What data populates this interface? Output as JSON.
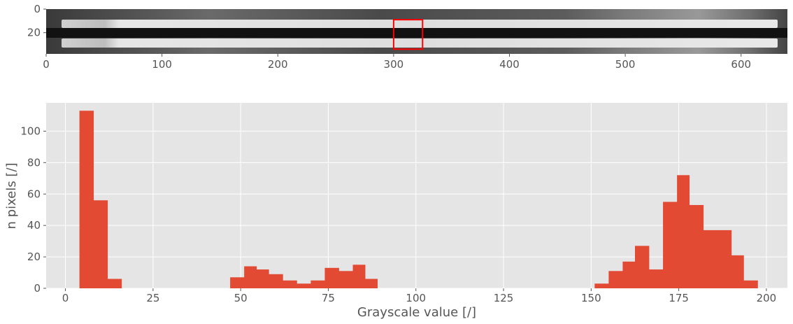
{
  "chart_data": [
    {
      "type": "image",
      "xlim": [
        0,
        640
      ],
      "ylim": [
        0,
        38
      ],
      "xticks": [
        "0",
        "100",
        "200",
        "300",
        "400",
        "500",
        "600"
      ],
      "yticks": [
        "0",
        "20"
      ],
      "roi": {
        "x": [
          300,
          325
        ],
        "y": [
          9,
          34
        ],
        "color": "#ff0000"
      }
    },
    {
      "type": "bar",
      "xlabel": "Grayscale value [/]",
      "ylabel": "n pixels [/]",
      "xlim": [
        -5.5,
        206
      ],
      "ylim": [
        0,
        118
      ],
      "grid": true,
      "color": "#E24A33",
      "xticks": [
        "0",
        "25",
        "50",
        "75",
        "100",
        "125",
        "150",
        "175",
        "200"
      ],
      "yticks": [
        "0",
        "20",
        "40",
        "60",
        "80",
        "100"
      ],
      "bins": [
        {
          "x0": 4,
          "x1": 8,
          "value": 113
        },
        {
          "x0": 8,
          "x1": 12,
          "value": 56
        },
        {
          "x0": 12,
          "x1": 16,
          "value": 6
        },
        {
          "x0": 47,
          "x1": 51,
          "value": 7
        },
        {
          "x0": 51,
          "x1": 54.5,
          "value": 14
        },
        {
          "x0": 54.5,
          "x1": 58,
          "value": 12
        },
        {
          "x0": 58,
          "x1": 62,
          "value": 9
        },
        {
          "x0": 62,
          "x1": 66,
          "value": 5
        },
        {
          "x0": 66,
          "x1": 70,
          "value": 3
        },
        {
          "x0": 70,
          "x1": 74,
          "value": 5
        },
        {
          "x0": 74,
          "x1": 78,
          "value": 13
        },
        {
          "x0": 78,
          "x1": 82,
          "value": 11
        },
        {
          "x0": 82,
          "x1": 85.5,
          "value": 15
        },
        {
          "x0": 85.5,
          "x1": 89,
          "value": 6
        },
        {
          "x0": 151,
          "x1": 155,
          "value": 3
        },
        {
          "x0": 155,
          "x1": 159,
          "value": 11
        },
        {
          "x0": 159,
          "x1": 162.5,
          "value": 17
        },
        {
          "x0": 162.5,
          "x1": 166.5,
          "value": 27
        },
        {
          "x0": 166.5,
          "x1": 170.5,
          "value": 12
        },
        {
          "x0": 170.5,
          "x1": 174.5,
          "value": 55
        },
        {
          "x0": 174.5,
          "x1": 178,
          "value": 72
        },
        {
          "x0": 178,
          "x1": 182,
          "value": 53
        },
        {
          "x0": 182,
          "x1": 186,
          "value": 37
        },
        {
          "x0": 186,
          "x1": 190,
          "value": 37
        },
        {
          "x0": 190,
          "x1": 193.5,
          "value": 21
        },
        {
          "x0": 193.5,
          "x1": 197.5,
          "value": 5
        }
      ]
    }
  ]
}
